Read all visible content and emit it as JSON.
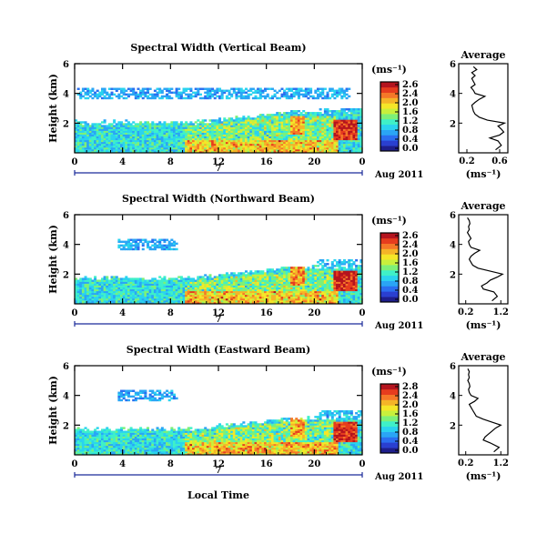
{
  "figure": {
    "xaxis_label": "Local Time",
    "date_label": "Aug 2011",
    "day_label": "7",
    "x_ticks": [
      "0",
      "4",
      "8",
      "12",
      "16",
      "20",
      "0"
    ],
    "y_label": "Height (km)",
    "y_ticks": [
      "6",
      "4",
      "2"
    ],
    "colorbar_unit": "(ms⁻¹)",
    "avg_title": "Average",
    "avg_unit": "(ms⁻¹)"
  },
  "colorscale": [
    "#1e1e8c",
    "#2a3fd0",
    "#2b6ff0",
    "#2aa5f5",
    "#2ad3ef",
    "#3ff0c8",
    "#7df078",
    "#c8f03c",
    "#f5e628",
    "#f5b428",
    "#f57828",
    "#e63c1e",
    "#b4141e"
  ],
  "chart_data": [
    {
      "type": "heatmap",
      "title": "Spectral Width (Vertical Beam)",
      "xlim": [
        0,
        24
      ],
      "ylim": [
        0,
        6
      ],
      "colorbar_ticks": [
        "2.6",
        "2.4",
        "2.0",
        "1.6",
        "1.2",
        "0.8",
        "0.4",
        "0.0"
      ],
      "avg_profile": {
        "xlim": [
          0.1,
          0.7
        ],
        "x_ticks": [
          "0.2",
          "0.6"
        ],
        "y_ticks": [
          "6",
          "4",
          "2"
        ],
        "height": [
          0.2,
          0.5,
          0.8,
          1.0,
          1.2,
          1.4,
          1.6,
          1.8,
          2.0,
          2.2,
          2.4,
          2.6,
          2.8,
          3.0,
          3.2,
          3.4,
          3.6,
          3.8,
          4.0,
          4.2,
          4.4,
          4.6,
          4.8,
          5.0,
          5.2,
          5.4,
          5.6,
          5.8
        ],
        "value": [
          0.55,
          0.62,
          0.58,
          0.48,
          0.6,
          0.65,
          0.62,
          0.58,
          0.66,
          0.45,
          0.35,
          0.3,
          0.28,
          0.27,
          0.26,
          0.3,
          0.35,
          0.42,
          0.3,
          0.28,
          0.25,
          0.3,
          0.28,
          0.26,
          0.3,
          0.26,
          0.32,
          0.28
        ]
      }
    },
    {
      "type": "heatmap",
      "title": "Spectral Width (Northward Beam)",
      "xlim": [
        0,
        24
      ],
      "ylim": [
        0,
        6
      ],
      "colorbar_ticks": [
        "2.6",
        "2.4",
        "2.0",
        "1.6",
        "1.2",
        "0.8",
        "0.4",
        "0.0"
      ],
      "avg_profile": {
        "xlim": [
          0.0,
          1.4
        ],
        "x_ticks": [
          "0.2",
          "1.2"
        ],
        "y_ticks": [
          "6",
          "4",
          "2"
        ],
        "height": [
          0.2,
          0.5,
          0.8,
          1.0,
          1.2,
          1.4,
          1.6,
          1.8,
          2.0,
          2.2,
          2.4,
          2.6,
          2.8,
          3.0,
          3.2,
          3.4,
          3.6,
          3.8,
          4.0,
          4.2,
          4.4,
          4.6,
          4.8,
          5.0,
          5.2,
          5.4,
          5.6,
          5.8
        ],
        "value": [
          0.95,
          1.1,
          1.0,
          0.7,
          0.65,
          0.8,
          0.9,
          1.1,
          1.25,
          0.9,
          0.55,
          0.4,
          0.35,
          0.3,
          0.35,
          0.45,
          0.6,
          0.35,
          0.3,
          0.28,
          0.35,
          0.3,
          0.25,
          0.3,
          0.28,
          0.32,
          0.3,
          0.25
        ]
      }
    },
    {
      "type": "heatmap",
      "title": "Spectral Width (Eastward Beam)",
      "xlim": [
        0,
        24
      ],
      "ylim": [
        0,
        6
      ],
      "colorbar_ticks": [
        "2.8",
        "2.4",
        "2.0",
        "1.6",
        "1.2",
        "0.8",
        "0.4",
        "0.0"
      ],
      "avg_profile": {
        "xlim": [
          0.0,
          1.4
        ],
        "x_ticks": [
          "0.2",
          "1.2"
        ],
        "y_ticks": [
          "6",
          "4",
          "2"
        ],
        "height": [
          0.2,
          0.5,
          0.8,
          1.0,
          1.2,
          1.4,
          1.6,
          1.8,
          2.0,
          2.2,
          2.4,
          2.6,
          2.8,
          3.0,
          3.2,
          3.4,
          3.6,
          3.8,
          4.0,
          4.2,
          4.4,
          4.6,
          4.8,
          5.0,
          5.2,
          5.4,
          5.6,
          5.8
        ],
        "value": [
          1.0,
          1.15,
          0.9,
          0.7,
          0.75,
          0.85,
          0.95,
          1.05,
          1.2,
          0.95,
          0.7,
          0.5,
          0.45,
          0.4,
          0.35,
          0.3,
          0.45,
          0.55,
          0.35,
          0.3,
          0.28,
          0.32,
          0.3,
          0.26,
          0.3,
          0.28,
          0.3,
          0.26
        ]
      }
    }
  ]
}
